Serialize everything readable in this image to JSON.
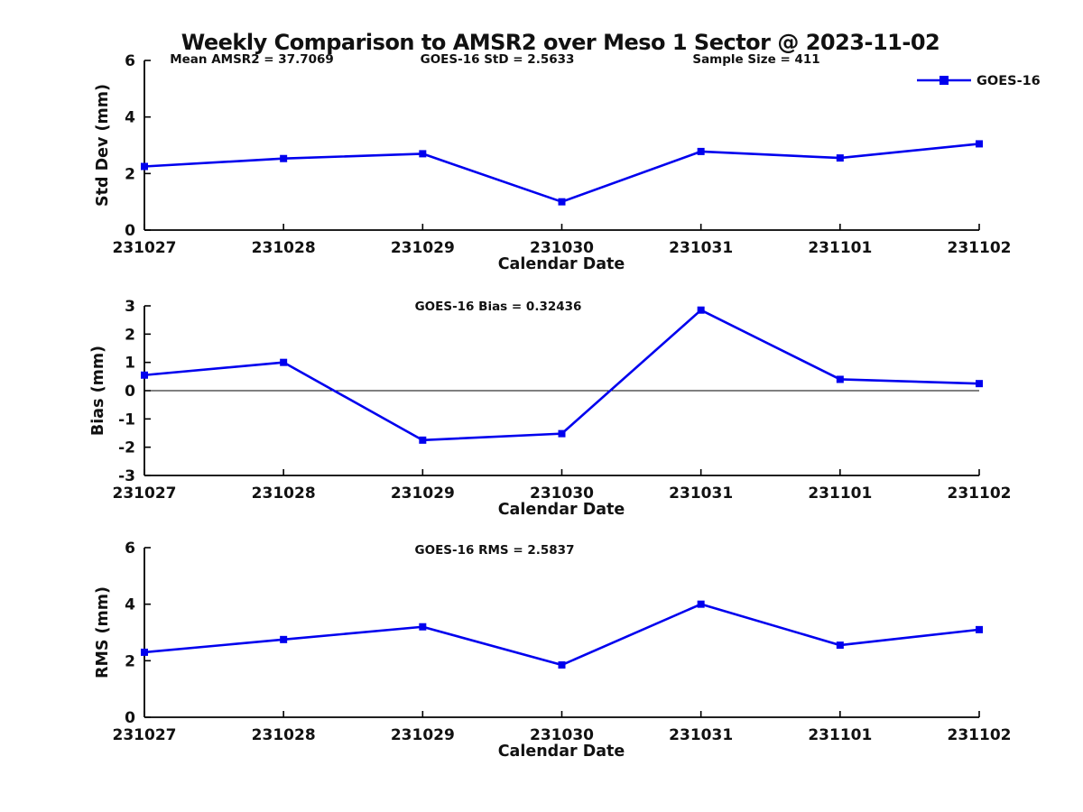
{
  "title": "Weekly Comparison to AMSR2 over Meso 1 Sector @ 2023-11-02",
  "colors": {
    "series": "#0000EE",
    "axis": "#000000",
    "text": "#111111"
  },
  "chart_data": [
    {
      "type": "line",
      "id": "stddev",
      "annotations": [
        "Mean AMSR2 = 37.7069",
        "GOES-16 StD = 2.5633",
        "Sample Size = 411"
      ],
      "xlabel": "Calendar Date",
      "ylabel": "Std Dev (mm)",
      "categories": [
        "231027",
        "231028",
        "231029",
        "231030",
        "231031",
        "231101",
        "231102"
      ],
      "series": [
        {
          "name": "GOES-16",
          "values": [
            2.25,
            2.53,
            2.7,
            1.0,
            2.78,
            2.55,
            3.05
          ]
        }
      ],
      "ylim": [
        0,
        6
      ],
      "yticks": [
        0,
        2,
        4,
        6
      ],
      "grid": false,
      "legend_position": "top-right",
      "marker": "square"
    },
    {
      "type": "line",
      "id": "bias",
      "annotations": [
        "GOES-16 Bias  = 0.32436"
      ],
      "xlabel": "Calendar Date",
      "ylabel": "Bias (mm)",
      "categories": [
        "231027",
        "231028",
        "231029",
        "231030",
        "231031",
        "231101",
        "231102"
      ],
      "series": [
        {
          "name": "GOES-16",
          "values": [
            0.55,
            1.0,
            -1.75,
            -1.52,
            2.85,
            0.4,
            0.25
          ]
        }
      ],
      "ylim": [
        -3,
        3
      ],
      "yticks": [
        3,
        2,
        1,
        0,
        -1,
        -2,
        -3
      ],
      "zero_line": true,
      "grid": false,
      "marker": "square"
    },
    {
      "type": "line",
      "id": "rms",
      "annotations": [
        "GOES-16 RMS = 2.5837"
      ],
      "xlabel": "Calendar Date",
      "ylabel": "RMS (mm)",
      "categories": [
        "231027",
        "231028",
        "231029",
        "231030",
        "231031",
        "231101",
        "231102"
      ],
      "series": [
        {
          "name": "GOES-16",
          "values": [
            2.3,
            2.75,
            3.2,
            1.85,
            4.0,
            2.55,
            3.1
          ]
        }
      ],
      "ylim": [
        0,
        6
      ],
      "yticks": [
        0,
        2,
        4,
        6
      ],
      "grid": false,
      "marker": "square"
    }
  ]
}
